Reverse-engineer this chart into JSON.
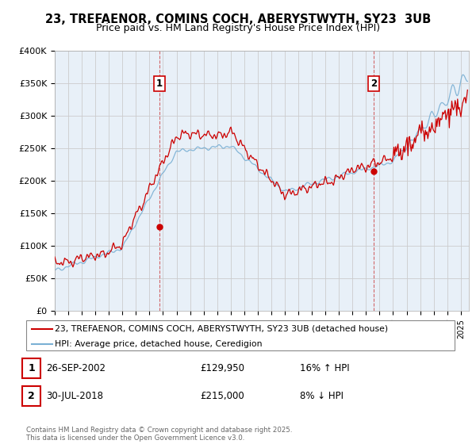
{
  "title": "23, TREFAENOR, COMINS COCH, ABERYSTWYTH, SY23  3UB",
  "subtitle": "Price paid vs. HM Land Registry's House Price Index (HPI)",
  "legend_line1": "23, TREFAENOR, COMINS COCH, ABERYSTWYTH, SY23 3UB (detached house)",
  "legend_line2": "HPI: Average price, detached house, Ceredigion",
  "annotation1_label": "1",
  "annotation1_date": "26-SEP-2002",
  "annotation1_price": "£129,950",
  "annotation1_hpi": "16% ↑ HPI",
  "annotation2_label": "2",
  "annotation2_date": "30-JUL-2018",
  "annotation2_price": "£215,000",
  "annotation2_hpi": "8% ↓ HPI",
  "footer": "Contains HM Land Registry data © Crown copyright and database right 2025.\nThis data is licensed under the Open Government Licence v3.0.",
  "line_color_red": "#cc0000",
  "line_color_blue": "#7ab0d4",
  "dot_color_red": "#cc0000",
  "grid_color": "#cccccc",
  "background_color": "#ffffff",
  "plot_bg_color": "#e8f0f8",
  "ylim": [
    0,
    400000
  ],
  "yticks": [
    0,
    50000,
    100000,
    150000,
    200000,
    250000,
    300000,
    350000,
    400000
  ],
  "ytick_labels": [
    "£0",
    "£50K",
    "£100K",
    "£150K",
    "£200K",
    "£250K",
    "£300K",
    "£350K",
    "£400K"
  ],
  "year_start": 1995,
  "year_end": 2025,
  "ann1_t": 2002.73,
  "ann1_price": 129950,
  "ann2_t": 2018.58,
  "ann2_price": 215000,
  "title_fontsize": 10.5,
  "subtitle_fontsize": 9
}
